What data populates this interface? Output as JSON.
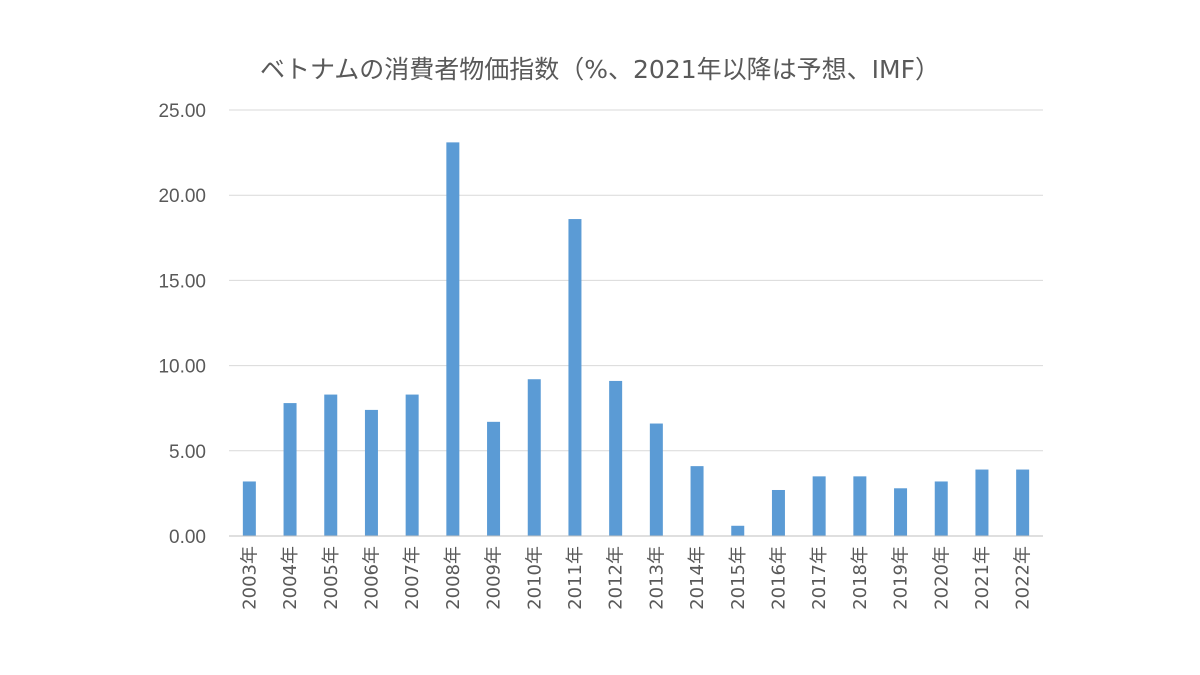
{
  "chart_data": {
    "type": "bar",
    "title": "ベトナムの消費者物価指数（%、2021年以降は予想、IMF）",
    "xlabel": "",
    "ylabel": "",
    "categories": [
      "2003年",
      "2004年",
      "2005年",
      "2006年",
      "2007年",
      "2008年",
      "2009年",
      "2010年",
      "2011年",
      "2012年",
      "2013年",
      "2014年",
      "2015年",
      "2016年",
      "2017年",
      "2018年",
      "2019年",
      "2020年",
      "2021年",
      "2022年"
    ],
    "values": [
      3.2,
      7.8,
      8.3,
      7.4,
      8.3,
      23.1,
      6.7,
      9.2,
      18.6,
      9.1,
      6.6,
      4.1,
      0.6,
      2.7,
      3.5,
      3.5,
      2.8,
      3.2,
      3.9,
      3.9
    ],
    "ylim": [
      0,
      25
    ],
    "yticks": [
      "0.00",
      "5.00",
      "10.00",
      "15.00",
      "20.00",
      "25.00"
    ],
    "grid": true,
    "legend": "none",
    "bar_color": "#5b9bd5"
  }
}
